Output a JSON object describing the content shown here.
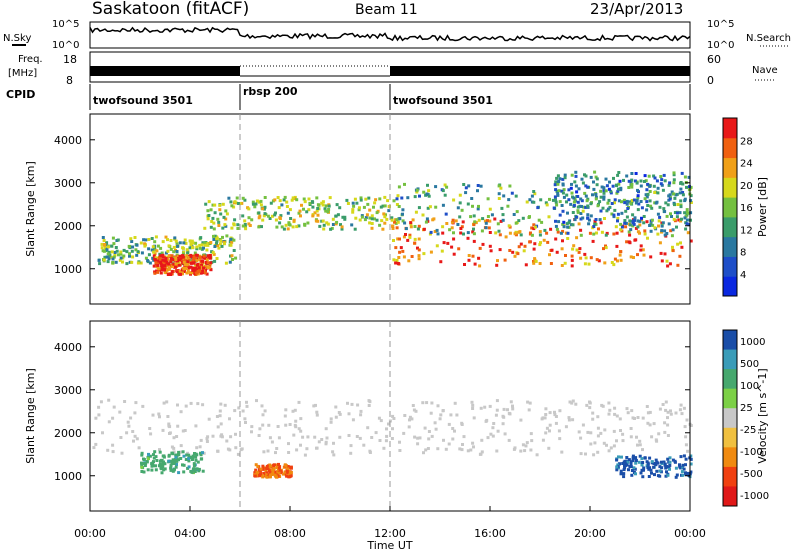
{
  "header": {
    "station": "Saskatoon (fitACF)",
    "beam": "Beam 11",
    "date": "23/Apr/2013"
  },
  "strip": {
    "nsky_label": "N.Sky",
    "nsky_ticks": [
      "10^5",
      "10^0"
    ],
    "nsearch_label": "N.Search",
    "nsearch_ticks": [
      "10^5",
      "10^0"
    ],
    "freq_label_line1": "Freq.",
    "freq_label_line2": "[MHz]",
    "freq_ticks": [
      "18",
      "8"
    ],
    "nave_label": "Nave",
    "nave_ticks": [
      "60",
      "0"
    ],
    "cpid_label": "CPID",
    "cpid_segments": [
      {
        "label": "twofsound 3501",
        "start_hour": 0,
        "end_hour": 6
      },
      {
        "label": "rbsp 200",
        "start_hour": 6,
        "end_hour": 12
      },
      {
        "label": "twofsound 3501",
        "start_hour": 12,
        "end_hour": 24
      }
    ]
  },
  "chart_data": [
    {
      "type": "heatmap",
      "title": "",
      "ylabel": "Slant Range [km]",
      "xlabel": "",
      "xlim": [
        0,
        24
      ],
      "ylim": [
        180,
        4600
      ],
      "y_ticks": [
        "1000",
        "2000",
        "3000",
        "4000"
      ],
      "colorbar": {
        "label": "Power [dB]",
        "ticks": [
          "4",
          "8",
          "12",
          "16",
          "20",
          "24",
          "28"
        ],
        "range": [
          0,
          32
        ]
      },
      "regions": [
        {
          "name": "main",
          "x": [
            0.3,
            5.8
          ],
          "y": [
            1150,
            1800
          ],
          "value": 15
        },
        {
          "name": "dense",
          "x": [
            2.5,
            4.8
          ],
          "y": [
            900,
            1350
          ],
          "value": 28
        },
        {
          "name": "arc",
          "x": [
            4.5,
            12.3
          ],
          "y": [
            1950,
            2700
          ],
          "value": 17
        },
        {
          "name": "trail",
          "x": [
            12,
            24
          ],
          "y": [
            1100,
            2200
          ],
          "value": 26
        },
        {
          "name": "upper",
          "x": [
            12.2,
            24
          ],
          "y": [
            1800,
            3000
          ],
          "value": 13
        },
        {
          "name": "sparse",
          "x": [
            18.5,
            24
          ],
          "y": [
            2000,
            3300
          ],
          "value": 10
        }
      ]
    },
    {
      "type": "heatmap",
      "title": "",
      "ylabel": "Slant Range [km]",
      "xlabel": "Time UT",
      "xlim": [
        0,
        24
      ],
      "ylim": [
        180,
        4600
      ],
      "x_ticks": [
        "00:00",
        "04:00",
        "08:00",
        "12:00",
        "16:00",
        "20:00",
        "00:00"
      ],
      "y_ticks": [
        "1000",
        "2000",
        "3000",
        "4000"
      ],
      "colorbar": {
        "label": "Velocity [m s^-1]",
        "ticks": [
          "1000",
          "500",
          "100",
          "25",
          "-25",
          "-100",
          "-500",
          "-1000"
        ]
      },
      "regions": [
        {
          "name": "ground",
          "x": [
            0,
            24
          ],
          "y": [
            1500,
            2800
          ],
          "value": 0
        },
        {
          "name": "flow-west",
          "x": [
            2,
            4.5
          ],
          "y": [
            1100,
            1600
          ],
          "value": 200
        },
        {
          "name": "flow-east",
          "x": [
            6.5,
            8
          ],
          "y": [
            1000,
            1300
          ],
          "value": -300
        },
        {
          "name": "flow-dusk",
          "x": [
            21,
            24
          ],
          "y": [
            1000,
            1500
          ],
          "value": 700
        }
      ]
    }
  ],
  "colors": {
    "power": [
      "#0a28e0",
      "#1e4ec8",
      "#2a78a0",
      "#3a9c6a",
      "#74c040",
      "#d6d81c",
      "#f0a018",
      "#f06010",
      "#e81818"
    ],
    "velocity_pos": [
      "#1a4ea8",
      "#3a9cb8",
      "#46a86e",
      "#7cd046"
    ],
    "velocity_neg": [
      "#c8c8c8",
      "#f0c040",
      "#f08a10",
      "#f04010",
      "#e01818"
    ]
  }
}
